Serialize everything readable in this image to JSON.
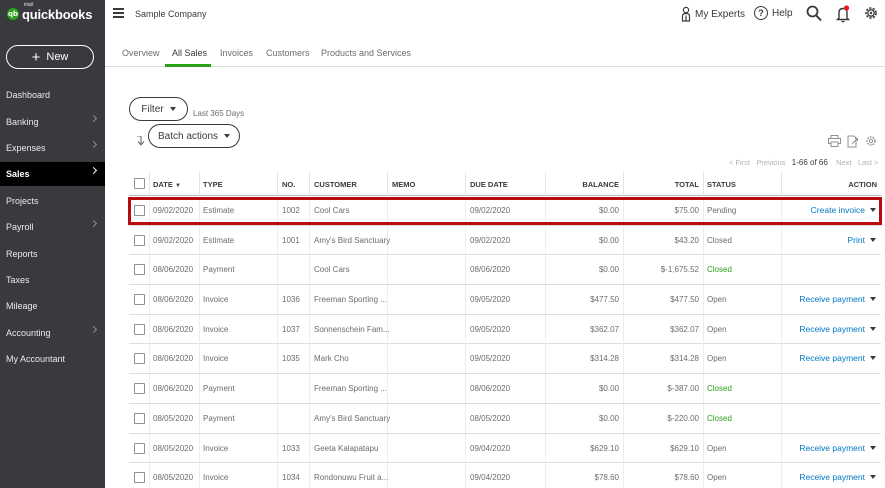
{
  "sidebar": {
    "logo_small": "intuit",
    "logo_text": "quickbooks",
    "new_label": "New",
    "items": [
      {
        "label": "Dashboard",
        "chevron": false,
        "active": false
      },
      {
        "label": "Banking",
        "chevron": true,
        "active": false
      },
      {
        "label": "Expenses",
        "chevron": true,
        "active": false
      },
      {
        "label": "Sales",
        "chevron": true,
        "active": true
      },
      {
        "label": "Projects",
        "chevron": false,
        "active": false
      },
      {
        "label": "Payroll",
        "chevron": true,
        "active": false
      },
      {
        "label": "Reports",
        "chevron": false,
        "active": false
      },
      {
        "label": "Taxes",
        "chevron": false,
        "active": false
      },
      {
        "label": "Mileage",
        "chevron": false,
        "active": false
      },
      {
        "label": "Accounting",
        "chevron": true,
        "active": false
      },
      {
        "label": "My Accountant",
        "chevron": false,
        "active": false
      }
    ]
  },
  "header": {
    "company": "Sample Company",
    "experts": "My Experts",
    "help": "Help"
  },
  "tabs": [
    {
      "label": "Overview",
      "active": false
    },
    {
      "label": "All Sales",
      "active": true
    },
    {
      "label": "Invoices",
      "active": false
    },
    {
      "label": "Customers",
      "active": false
    },
    {
      "label": "Products and Services",
      "active": false
    }
  ],
  "filter": {
    "label": "Filter",
    "range": "Last 365 Days"
  },
  "batch": {
    "label": "Batch actions"
  },
  "pager": {
    "first": "< First",
    "previous": "Previous",
    "current": "1-66 of 66",
    "next": "Next",
    "last": "Last >"
  },
  "table": {
    "columns": {
      "date": "DATE",
      "type": "TYPE",
      "no": "NO.",
      "customer": "CUSTOMER",
      "memo": "MEMO",
      "due": "DUE DATE",
      "balance": "BALANCE",
      "total": "TOTAL",
      "status": "STATUS",
      "action": "ACTION"
    },
    "rows": [
      {
        "date": "09/02/2020",
        "type": "Estimate",
        "no": "1002",
        "customer": "Cool Cars",
        "memo": "",
        "due": "09/02/2020",
        "balance": "$0.00",
        "total": "$75.00",
        "status": "Pending",
        "status_green": false,
        "action": "Create invoice"
      },
      {
        "date": "09/02/2020",
        "type": "Estimate",
        "no": "1001",
        "customer": "Amy's Bird Sanctuary",
        "memo": "",
        "due": "09/02/2020",
        "balance": "$0.00",
        "total": "$43.20",
        "status": "Closed",
        "status_green": false,
        "action": "Print"
      },
      {
        "date": "08/06/2020",
        "type": "Payment",
        "no": "",
        "customer": "Cool Cars",
        "memo": "",
        "due": "08/06/2020",
        "balance": "$0.00",
        "total": "$-1,675.52",
        "status": "Closed",
        "status_green": true,
        "action": ""
      },
      {
        "date": "08/06/2020",
        "type": "Invoice",
        "no": "1036",
        "customer": "Freeman Sporting ...",
        "memo": "",
        "due": "09/05/2020",
        "balance": "$477.50",
        "total": "$477.50",
        "status": "Open",
        "status_green": false,
        "action": "Receive payment"
      },
      {
        "date": "08/06/2020",
        "type": "Invoice",
        "no": "1037",
        "customer": "Sonnenschein Fam...",
        "memo": "",
        "due": "09/05/2020",
        "balance": "$362.07",
        "total": "$362.07",
        "status": "Open",
        "status_green": false,
        "action": "Receive payment"
      },
      {
        "date": "08/06/2020",
        "type": "Invoice",
        "no": "1035",
        "customer": "Mark Cho",
        "memo": "",
        "due": "09/05/2020",
        "balance": "$314.28",
        "total": "$314.28",
        "status": "Open",
        "status_green": false,
        "action": "Receive payment"
      },
      {
        "date": "08/06/2020",
        "type": "Payment",
        "no": "",
        "customer": "Freeman Sporting ...",
        "memo": "",
        "due": "08/06/2020",
        "balance": "$0.00",
        "total": "$-387.00",
        "status": "Closed",
        "status_green": true,
        "action": ""
      },
      {
        "date": "08/05/2020",
        "type": "Payment",
        "no": "",
        "customer": "Amy's Bird Sanctuary",
        "memo": "",
        "due": "08/05/2020",
        "balance": "$0.00",
        "total": "$-220.00",
        "status": "Closed",
        "status_green": true,
        "action": ""
      },
      {
        "date": "08/05/2020",
        "type": "Invoice",
        "no": "1033",
        "customer": "Geeta Kalapatapu",
        "memo": "",
        "due": "09/04/2020",
        "balance": "$629.10",
        "total": "$629.10",
        "status": "Open",
        "status_green": false,
        "action": "Receive payment"
      },
      {
        "date": "08/05/2020",
        "type": "Invoice",
        "no": "1034",
        "customer": "Rondonuwu Fruit a...",
        "memo": "",
        "due": "09/04/2020",
        "balance": "$78.60",
        "total": "$78.60",
        "status": "Open",
        "status_green": false,
        "action": "Receive payment"
      }
    ]
  },
  "colors": {
    "sidebar": "#393a3d",
    "accent_green": "#2ca01c",
    "link_blue": "#0077c5",
    "highlight_red": "#b80b0b"
  }
}
